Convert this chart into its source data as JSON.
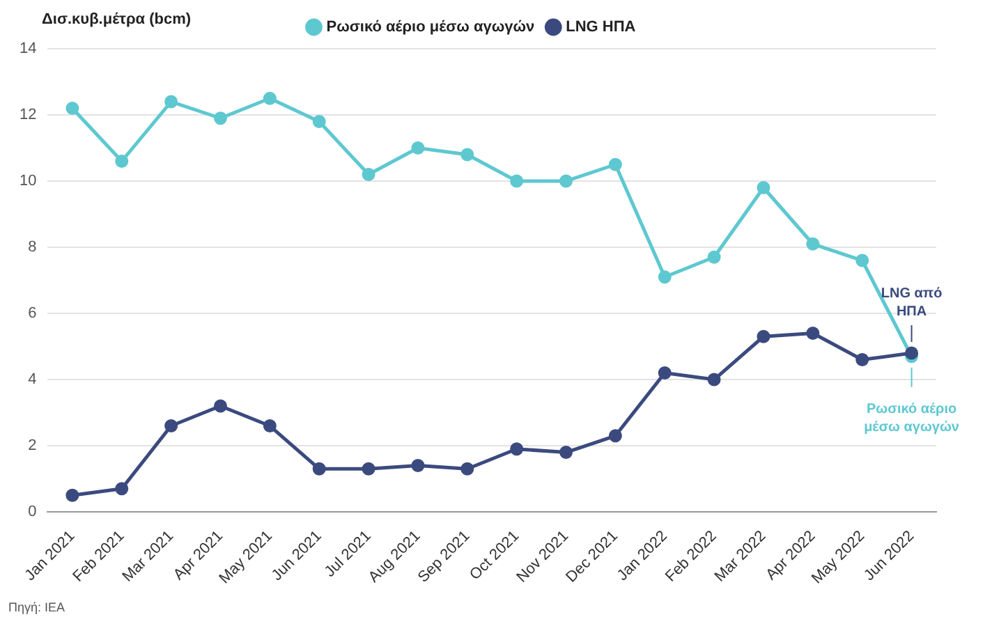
{
  "chart_data": {
    "type": "line",
    "ylabel": "Δισ.κυβ.μέτρα (bcm)",
    "categories": [
      "Jan 2021",
      "Feb 2021",
      "Mar 2021",
      "Apr 2021",
      "May 2021",
      "Jun 2021",
      "Jul 2021",
      "Aug 2021",
      "Sep 2021",
      "Oct 2021",
      "Nov 2021",
      "Dec 2021",
      "Jan 2022",
      "Feb 2022",
      "Mar 2022",
      "Apr 2022",
      "May 2022",
      "Jun 2022"
    ],
    "series": [
      {
        "name": "Ρωσικό αέριο μέσω αγωγών",
        "color": "#5ec8d0",
        "values": [
          12.2,
          10.6,
          12.4,
          11.9,
          12.5,
          11.8,
          10.2,
          11.0,
          10.8,
          10.0,
          10.0,
          10.5,
          7.1,
          7.7,
          9.8,
          8.1,
          7.6,
          4.7
        ]
      },
      {
        "name": "LNG ΗΠΑ",
        "color": "#3b4a7e",
        "values": [
          0.5,
          0.7,
          2.6,
          3.2,
          2.6,
          1.3,
          1.3,
          1.4,
          1.3,
          1.9,
          1.8,
          2.3,
          4.2,
          4.0,
          5.3,
          5.4,
          4.6,
          4.8
        ]
      }
    ],
    "ylim": [
      0,
      14
    ],
    "yticks": [
      0,
      2,
      4,
      6,
      8,
      10,
      12,
      14
    ],
    "grid": "y",
    "legend": "top",
    "marker": "circle",
    "line_style": "solid",
    "annotations": [
      {
        "text": "LNG από\nΗΠΑ",
        "x": "Jun 2022",
        "y": 4.8
      },
      {
        "text": "Ρωσικό αέριο\nμέσω αγωγών",
        "x": "Jun 2022",
        "y": 4.7
      },
      "Πηγή: IEA"
    ]
  }
}
